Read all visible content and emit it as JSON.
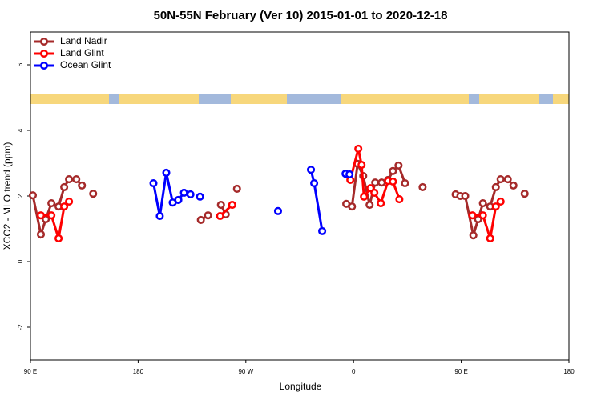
{
  "chart_data": {
    "type": "line",
    "title": "50N-55N February (Ver 10)   2015-01-01 to 2020-12-18",
    "x_label": "Longitude",
    "y_label": "XCO2 - MLO trend (ppm)",
    "xlim": [
      90,
      540
    ],
    "ylim": [
      -3,
      7
    ],
    "xticks": [
      {
        "value": 90,
        "label": "90 E"
      },
      180,
      {
        "value": 270,
        "label": "90 W"
      },
      {
        "value": 360,
        "label": "0"
      },
      {
        "value": 450,
        "label": "90 E"
      },
      {
        "value": 540,
        "label": "180"
      }
    ],
    "yticks": [
      -2,
      0,
      2,
      4,
      6
    ],
    "legend": "top-left",
    "series": [
      {
        "name": "Land Nadir",
        "color": "#a52a2a",
        "x": [
          92,
          98.7,
          102.8,
          107.5,
          113.5,
          118.2,
          122.2,
          128.3,
          133,
          138,
          142.4,
          230,
          232.4,
          238.4,
          245,
          249.2,
          253.2,
          258,
          262.6,
          300,
          353.9,
          358.7,
          363.4,
          368.1,
          373.4,
          378.1,
          383.5,
          388.9,
          392.9,
          397.6,
          403,
          410,
          417.7,
          430,
          445.3,
          449.3,
          453.3,
          460.1,
          464.1,
          468.1,
          474.2,
          478.9,
          482.9,
          488.9,
          493.6,
          498,
          503
        ],
        "values": [
          2.02,
          0.83,
          1.29,
          1.78,
          1.68,
          2.27,
          2.51,
          2.51,
          2.32,
          null,
          2.07,
          null,
          1.27,
          1.41,
          null,
          1.73,
          1.44,
          null,
          2.22,
          null,
          1.76,
          1.68,
          2.98,
          2.61,
          1.73,
          2.41,
          2.41,
          2.49,
          2.76,
          2.93,
          2.39,
          null,
          2.27,
          null,
          2.05,
          2.0,
          2.0,
          0.8,
          1.29,
          1.78,
          1.68,
          2.27,
          2.51,
          2.51,
          2.32,
          null,
          2.07
        ]
      },
      {
        "name": "Land Glint",
        "color": "#ff0000",
        "x": [
          98.7,
          107.5,
          113.5,
          118.2,
          122.2,
          200,
          248.5,
          258.6,
          300,
          357.3,
          364,
          366.7,
          368.7,
          374.1,
          377.4,
          382.8,
          388.9,
          392.9,
          398.3,
          420,
          459.4,
          468.1,
          474.2,
          478.9,
          482.9
        ],
        "values": [
          1.41,
          1.41,
          0.71,
          1.68,
          1.83,
          null,
          1.39,
          1.73,
          null,
          2.49,
          3.44,
          2.95,
          1.98,
          2.24,
          2.1,
          1.78,
          2.46,
          2.44,
          1.9,
          null,
          1.41,
          1.41,
          0.71,
          1.68,
          1.83
        ]
      },
      {
        "name": "Ocean Glint",
        "color": "#0000ff",
        "x": [
          192.8,
          198.1,
          203.5,
          208.9,
          213.6,
          218.3,
          223.7,
          228,
          231.7,
          260,
          296.9,
          310,
          324.4,
          327.1,
          333.8,
          340,
          353.3,
          356.6
        ],
        "values": [
          2.39,
          1.39,
          2.71,
          1.8,
          1.88,
          2.1,
          2.05,
          null,
          1.98,
          null,
          1.54,
          null,
          2.8,
          2.39,
          0.93,
          null,
          2.68,
          2.66
        ]
      }
    ]
  }
}
